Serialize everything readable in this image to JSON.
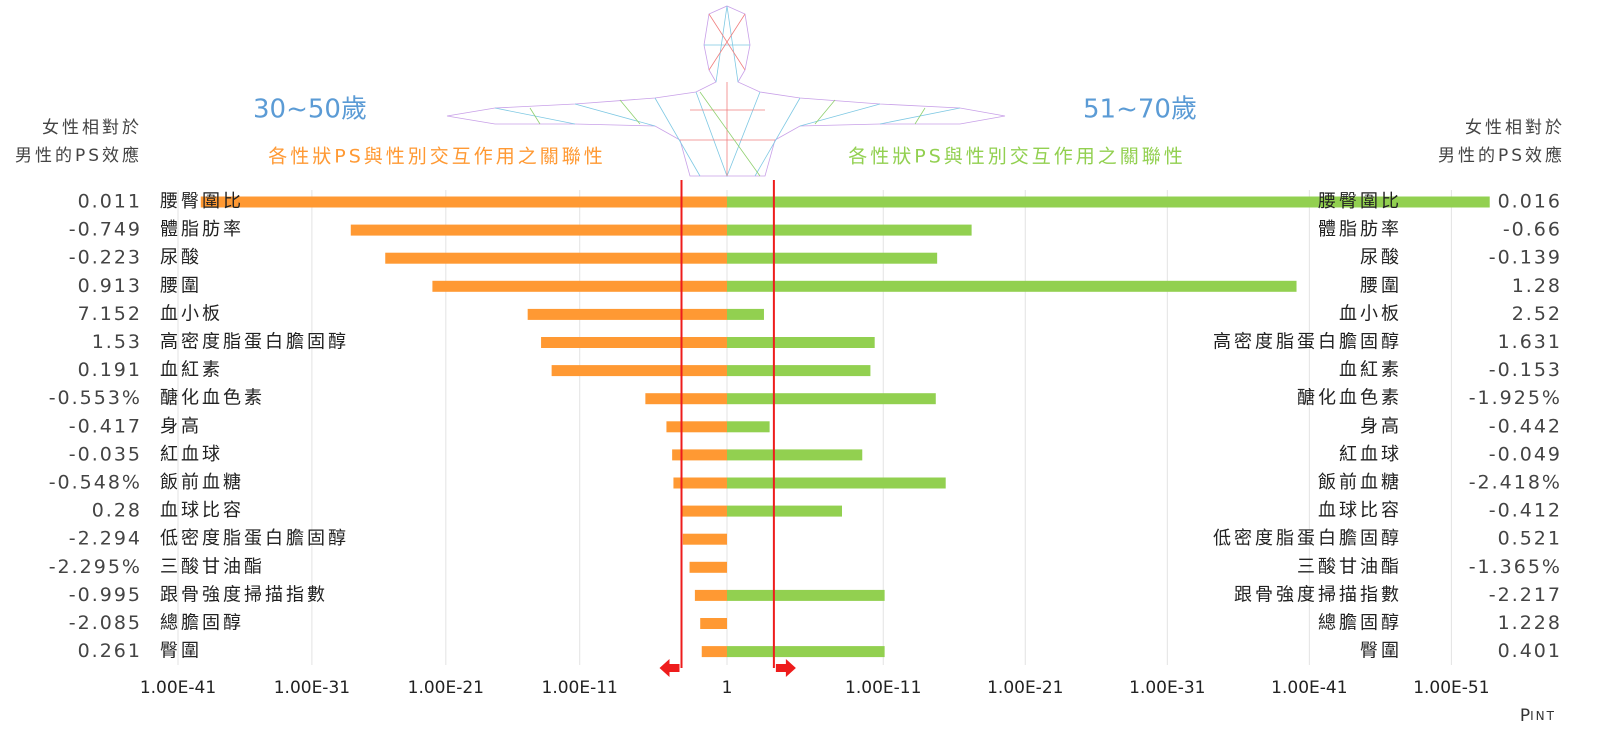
{
  "chart_data": {
    "type": "butterfly",
    "log_scale": true,
    "grid": true,
    "side_label_lines": [
      "女性相對於",
      "男性的PS效應"
    ],
    "x_label": {
      "main": "P",
      "sub": "INT"
    },
    "categories": [
      "腰臀圍比",
      "體脂肪率",
      "尿酸",
      "腰圍",
      "血小板",
      "高密度脂蛋白膽固醇",
      "血紅素",
      "醣化血色素",
      "身高",
      "紅血球",
      "飯前血糖",
      "血球比容",
      "低密度脂蛋白膽固醇",
      "三酸甘油酯",
      "跟骨強度掃描指數",
      "總膽固醇",
      "臀圍"
    ],
    "series": [
      {
        "name": "30~50歲",
        "subtitle": "各性狀PS與性別交互作用之關聯性",
        "color": "#ff9933",
        "title_color": "#5b9bd5",
        "subtitle_color": "#ff9933",
        "side": "left",
        "xlim": [
          1,
          1e-41
        ],
        "xticks": [
          {
            "value": 1e-41,
            "label": "1.00E-41"
          },
          {
            "value": 1e-31,
            "label": "1.00E-31"
          },
          {
            "value": 1e-21,
            "label": "1.00E-21"
          },
          {
            "value": 1e-11,
            "label": "1.00E-11"
          },
          1
        ],
        "reference_line": 0.0004,
        "values": [
          5e-40,
          8e-29,
          3e-26,
          1e-22,
          1.3e-15,
          1.3e-14,
          8e-14,
          8e-07,
          3e-05,
          8e-05,
          0.0001,
          0.0004,
          0.0005,
          0.0016,
          0.004,
          0.01,
          0.013
        ],
        "effects": [
          "0.011",
          "-0.749",
          "-0.223",
          "0.913",
          "7.152",
          "1.53",
          "0.191",
          "-0.553%",
          "-0.417",
          "-0.035",
          "-0.548%",
          "0.28",
          "-2.294",
          "-2.295%",
          "-0.995",
          "-2.085",
          "0.261"
        ]
      },
      {
        "name": "51~70歲",
        "subtitle": "各性狀PS與性別交互作用之關聯性",
        "color": "#92d050",
        "title_color": "#5b9bd5",
        "subtitle_color": "#92d050",
        "side": "right",
        "xlim": [
          1,
          1e-54
        ],
        "xticks": [
          {
            "value": 1e-11,
            "label": "1.00E-11"
          },
          {
            "value": 1e-21,
            "label": "1.00E-21"
          },
          {
            "value": 1e-31,
            "label": "1.00E-31"
          },
          {
            "value": 1e-41,
            "label": "1.00E-41"
          },
          {
            "value": 1e-51,
            "label": "1.00E-51"
          }
        ],
        "reference_line": 0.0005,
        "values": [
          2e-54,
          6e-18,
          1.6e-15,
          8e-41,
          0.0025,
          4e-11,
          8e-11,
          2e-15,
          0.001,
          3e-10,
          4e-16,
          8e-09,
          null,
          null,
          8e-12,
          null,
          8e-12
        ],
        "effects": [
          "0.016",
          "-0.66",
          "-0.139",
          "1.28",
          "2.52",
          "1.631",
          "-0.153",
          "-1.925%",
          "-0.442",
          "-0.049",
          "-2.418%",
          "-0.412",
          "0.521",
          "-1.365%",
          "-2.217",
          "1.228",
          "0.401"
        ]
      }
    ]
  }
}
